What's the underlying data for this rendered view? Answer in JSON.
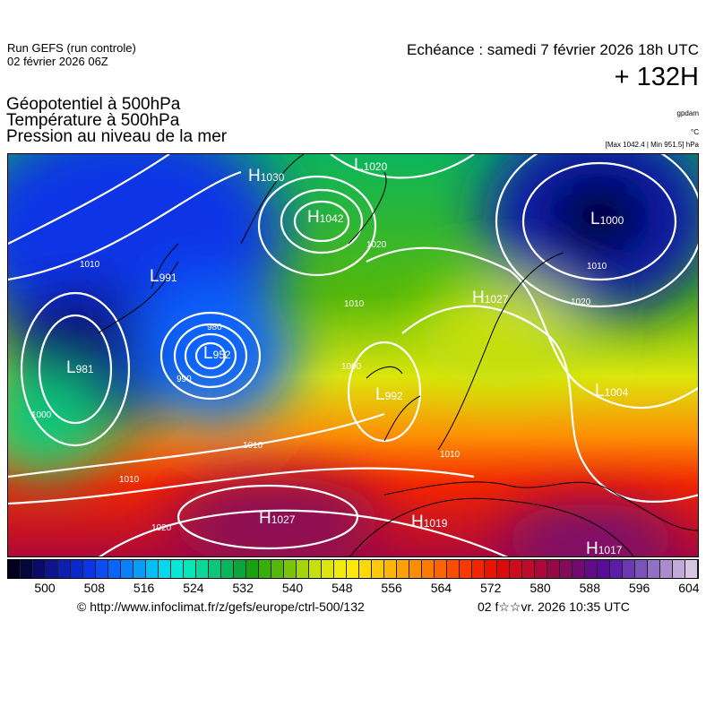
{
  "header": {
    "run": "Run GEFS (run controle)",
    "run_date": "02 février 2026 06Z",
    "echeance": "Echéance : samedi 7 février 2026 18h UTC",
    "lead": "+ 132H",
    "titles": [
      "Géopotentiel à 500hPa",
      "Température à 500hPa",
      "Pression au niveau de la mer"
    ],
    "units": [
      "gpdam",
      "°C",
      "[Max 1042.4 | Min 951.5] hPa"
    ]
  },
  "map": {
    "centers": [
      {
        "type": "H",
        "value": "1030"
      },
      {
        "type": "H",
        "value": "1042"
      },
      {
        "type": "L",
        "value": "1020"
      },
      {
        "type": "L",
        "value": "1000"
      },
      {
        "type": "L",
        "value": "991"
      },
      {
        "type": "L",
        "value": "952"
      },
      {
        "type": "L",
        "value": "981"
      },
      {
        "type": "L",
        "value": "992"
      },
      {
        "type": "H",
        "value": "1027"
      },
      {
        "type": "L",
        "value": "1004"
      },
      {
        "type": "H",
        "value": "1027"
      },
      {
        "type": "H",
        "value": "1019"
      },
      {
        "type": "H",
        "value": "1017"
      }
    ],
    "isobar_labels": [
      "1010",
      "1020",
      "1010",
      "1000",
      "990",
      "980",
      "1010",
      "1020",
      "1010",
      "1000",
      "1010",
      "1020",
      "1010"
    ]
  },
  "colorbar": {
    "ticks": [
      "500",
      "508",
      "516",
      "524",
      "532",
      "540",
      "548",
      "556",
      "564",
      "572",
      "580",
      "588",
      "596",
      "604"
    ],
    "colors": [
      "#03001f",
      "#06063f",
      "#0a0a6a",
      "#0d1490",
      "#0b1fb0",
      "#0a28cc",
      "#0b35e6",
      "#0b4cf5",
      "#0a64fb",
      "#0a80fb",
      "#079cf8",
      "#05bef5",
      "#05d8ee",
      "#05e8d8",
      "#06e6b8",
      "#08d898",
      "#0ac77a",
      "#0bb55c",
      "#0ba53e",
      "#17a00f",
      "#35b00b",
      "#55b80a",
      "#7cc40c",
      "#a3d40c",
      "#c6e00b",
      "#dce60c",
      "#f0ea0d",
      "#fde80d",
      "#fdd80b",
      "#fdc80a",
      "#fdb508",
      "#fda206",
      "#fd8e04",
      "#fd7a02",
      "#fd6401",
      "#fd4c00",
      "#fb3800",
      "#f32400",
      "#e81400",
      "#dc0a0a",
      "#cf0a1c",
      "#c00a2c",
      "#ad0838",
      "#980846",
      "#860a5a",
      "#720a72",
      "#620a88",
      "#5a0c98",
      "#5c1ca8",
      "#6a38b0",
      "#7c54b8",
      "#9270c4",
      "#aa8ccf",
      "#c2aad8",
      "#d6c6e2"
    ]
  },
  "footer": {
    "url": "© http://www.infoclimat.fr/z/gefs/europe/ctrl-500/132",
    "date": "02 f☆☆vr. 2026 10:35 UTC"
  }
}
